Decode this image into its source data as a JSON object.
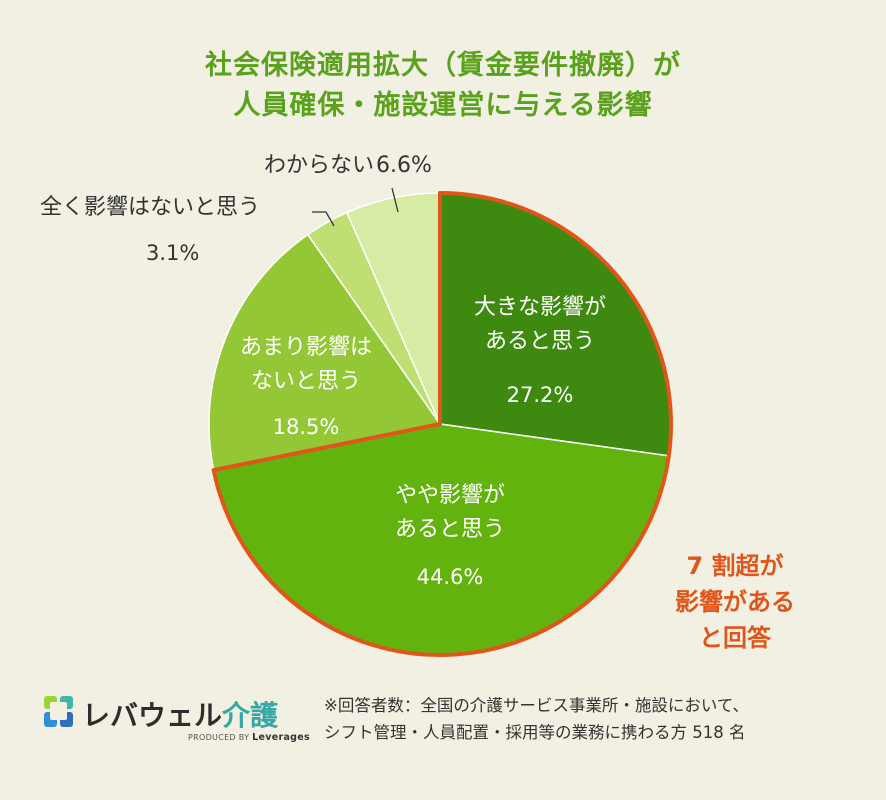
{
  "title": {
    "line1": "社会保険適用拡大（賃金要件撤廃）が",
    "line2": "人員確保・施設運営に与える影響"
  },
  "chart_data": {
    "type": "pie",
    "title": "社会保険適用拡大（賃金要件撤廃）が人員確保・施設運営に与える影響",
    "slices": [
      {
        "label_lines": [
          "大きな影響が",
          "あると思う"
        ],
        "value": 27.2,
        "value_text": "27.2%",
        "color": "#3e8a11",
        "text_color": "#ffffff",
        "highlight": true
      },
      {
        "label_lines": [
          "やや影響が",
          "あると思う"
        ],
        "value": 44.6,
        "value_text": "44.6%",
        "color": "#63b30e",
        "text_color": "#ffffff",
        "highlight": true
      },
      {
        "label_lines": [
          "あまり影響は",
          "ないと思う"
        ],
        "value": 18.5,
        "value_text": "18.5%",
        "color": "#94c735",
        "text_color": "#ffffff",
        "highlight": false
      },
      {
        "label_lines": [
          "全く影響はないと思う"
        ],
        "value": 3.1,
        "value_text": "3.1%",
        "color": "#c0df72",
        "text_color": "#333333",
        "highlight": false
      },
      {
        "label_lines": [
          "わからない"
        ],
        "value": 6.6,
        "value_text": "6.6%",
        "color": "#d6eba3",
        "text_color": "#333333",
        "highlight": false
      }
    ],
    "highlight_color": "#e0561a",
    "highlight_note": [
      "7 割超が",
      "影響がある",
      "と回答"
    ]
  },
  "footer": {
    "note_line1": "※回答者数：全国の介護サービス事業所・施設において、",
    "note_line2": "シフト管理・人員配置・採用等の業務に携わる方 518 名"
  },
  "logo": {
    "text_main": "レバウェル",
    "text_kaigo": "介護",
    "produced_by": "PRODUCED BY",
    "brand": "Leverages"
  }
}
